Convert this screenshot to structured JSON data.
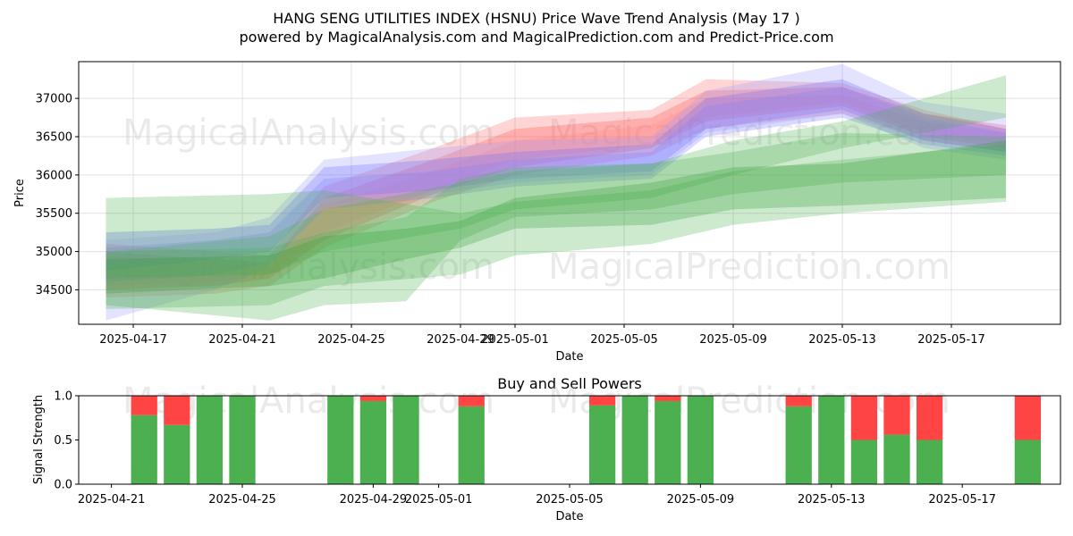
{
  "chart_data": [
    {
      "type": "area",
      "title": "HANG SENG UTILITIES INDEX (HSNU) Price Wave Trend Analysis (May 17 )",
      "subtitle": "powered by MagicalAnalysis.com and MagicalPrediction.com and Predict-Price.com",
      "xlabel": "Date",
      "ylabel": "Price",
      "xlim": [
        "2025-04-15",
        "2025-05-21"
      ],
      "ylim": [
        34050,
        37480
      ],
      "xticks": [
        "2025-04-17",
        "2025-04-21",
        "2025-04-25",
        "2025-04-29",
        "2025-05-01",
        "2025-05-05",
        "2025-05-09",
        "2025-05-13",
        "2025-05-17"
      ],
      "yticks": [
        34500,
        35000,
        35500,
        36000,
        36500,
        37000
      ],
      "grid": true,
      "watermarks": [
        "MagicalAnalysis.com",
        "MagicalPrediction.com",
        "MagicalAnalysis.com",
        "MagicalPrediction.com"
      ],
      "bands": [
        {
          "color": "#ff4444",
          "x": [
            "2025-04-16",
            "2025-04-20",
            "2025-04-22",
            "2025-04-24",
            "2025-04-28",
            "2025-05-01",
            "2025-05-06",
            "2025-05-08",
            "2025-05-13",
            "2025-05-16",
            "2025-05-19"
          ],
          "upper": [
            35000,
            34900,
            34850,
            35700,
            36200,
            36600,
            36750,
            37100,
            37150,
            36800,
            36650
          ],
          "lower": [
            34500,
            34550,
            34650,
            35150,
            35750,
            36100,
            36350,
            36700,
            36900,
            36500,
            36350
          ]
        },
        {
          "color": "#ff6666",
          "x": [
            "2025-04-16",
            "2025-04-20",
            "2025-04-22",
            "2025-04-24",
            "2025-04-28",
            "2025-05-01",
            "2025-05-06",
            "2025-05-08",
            "2025-05-13",
            "2025-05-16",
            "2025-05-19"
          ],
          "upper": [
            35100,
            35000,
            34950,
            35850,
            36350,
            36750,
            36850,
            37250,
            37200,
            36850,
            36600
          ],
          "lower": [
            34400,
            34450,
            34550,
            35050,
            35650,
            36000,
            36250,
            36600,
            36800,
            36450,
            36300
          ]
        },
        {
          "color": "#ff8888",
          "x": [
            "2025-04-16",
            "2025-04-20",
            "2025-04-22",
            "2025-04-24",
            "2025-04-28",
            "2025-05-01",
            "2025-05-06",
            "2025-05-08",
            "2025-05-13",
            "2025-05-16",
            "2025-05-19"
          ],
          "upper": [
            34950,
            34850,
            34800,
            35600,
            36050,
            36450,
            36650,
            37000,
            37050,
            36700,
            36550
          ],
          "lower": [
            34550,
            34600,
            34700,
            35250,
            35800,
            36200,
            36400,
            36750,
            36950,
            36550,
            36400
          ]
        },
        {
          "color": "#5555ff",
          "x": [
            "2025-04-16",
            "2025-04-20",
            "2025-04-22",
            "2025-04-24",
            "2025-04-28",
            "2025-05-01",
            "2025-05-06",
            "2025-05-08",
            "2025-05-13",
            "2025-05-16",
            "2025-05-19"
          ],
          "upper": [
            35250,
            35300,
            35350,
            36100,
            36200,
            36300,
            36400,
            37000,
            37250,
            36800,
            36600
          ],
          "lower": [
            34750,
            34900,
            35000,
            35700,
            35800,
            35950,
            36050,
            36600,
            36850,
            36450,
            36300
          ]
        },
        {
          "color": "#7777ff",
          "x": [
            "2025-04-16",
            "2025-04-20",
            "2025-04-22",
            "2025-04-24",
            "2025-04-28",
            "2025-05-01",
            "2025-05-06",
            "2025-05-08",
            "2025-05-13",
            "2025-05-16",
            "2025-05-19"
          ],
          "upper": [
            35050,
            35150,
            35250,
            35950,
            36050,
            36200,
            36300,
            36900,
            37150,
            36750,
            36550
          ],
          "lower": [
            34600,
            34700,
            34850,
            35550,
            35700,
            35850,
            35950,
            36500,
            36750,
            36400,
            36250
          ]
        },
        {
          "color": "#9999ff",
          "x": [
            "2025-04-16",
            "2025-04-20",
            "2025-04-22",
            "2025-04-24",
            "2025-04-28",
            "2025-05-01",
            "2025-05-06",
            "2025-05-08",
            "2025-05-13",
            "2025-05-16",
            "2025-05-19"
          ],
          "upper": [
            35150,
            35250,
            35450,
            36200,
            36350,
            36450,
            36500,
            37100,
            37450,
            36950,
            36800
          ],
          "lower": [
            34100,
            34500,
            34800,
            35600,
            35750,
            35900,
            36000,
            36550,
            36800,
            36350,
            36200
          ]
        },
        {
          "color": "#4caf50",
          "x": [
            "2025-04-16",
            "2025-04-22",
            "2025-04-24",
            "2025-04-29",
            "2025-05-01",
            "2025-05-06",
            "2025-05-09",
            "2025-05-13",
            "2025-05-19"
          ],
          "upper": [
            35000,
            35200,
            35550,
            35900,
            36050,
            36150,
            36450,
            36700,
            37300
          ],
          "lower": [
            34650,
            34700,
            35000,
            35300,
            35550,
            35700,
            36000,
            36350,
            36750
          ]
        },
        {
          "color": "#4caf50",
          "x": [
            "2025-04-16",
            "2025-04-22",
            "2025-04-24",
            "2025-04-29",
            "2025-05-01",
            "2025-05-06",
            "2025-05-09",
            "2025-05-13",
            "2025-05-19"
          ],
          "upper": [
            35700,
            35750,
            35800,
            35500,
            35650,
            35800,
            36050,
            36200,
            36400
          ],
          "lower": [
            34250,
            34300,
            34550,
            34700,
            34950,
            35100,
            35350,
            35500,
            35650
          ]
        },
        {
          "color": "#4caf50",
          "x": [
            "2025-04-16",
            "2025-04-22",
            "2025-04-24",
            "2025-04-27",
            "2025-04-29",
            "2025-05-01",
            "2025-05-06",
            "2025-05-09",
            "2025-05-13",
            "2025-05-19"
          ],
          "upper": [
            35000,
            35050,
            35250,
            35450,
            35950,
            36100,
            36150,
            36300,
            36550,
            36500
          ],
          "lower": [
            34300,
            34100,
            34300,
            34350,
            35150,
            35450,
            35550,
            35750,
            35900,
            36000
          ]
        },
        {
          "color": "#2e9d36",
          "x": [
            "2025-04-16",
            "2025-04-22",
            "2025-04-24",
            "2025-04-27",
            "2025-04-29",
            "2025-05-01",
            "2025-05-06",
            "2025-05-09",
            "2025-05-13",
            "2025-05-19"
          ],
          "upper": [
            34900,
            34950,
            35200,
            35300,
            35400,
            35700,
            35900,
            36100,
            36150,
            36450
          ],
          "lower": [
            34450,
            34550,
            34650,
            34900,
            35050,
            35300,
            35350,
            35550,
            35600,
            35700
          ]
        }
      ]
    },
    {
      "type": "bar",
      "title": "Buy and Sell Powers",
      "xlabel": "Date",
      "ylabel": "Signal Strength",
      "xlim": [
        "2025-04-20",
        "2025-05-20"
      ],
      "ylim": [
        0,
        1
      ],
      "xticks": [
        "2025-04-21",
        "2025-04-25",
        "2025-04-29",
        "2025-05-01",
        "2025-05-05",
        "2025-05-09",
        "2025-05-13",
        "2025-05-17"
      ],
      "yticks": [
        0.0,
        0.5,
        1.0
      ],
      "buy_color": "#4caf50",
      "sell_color": "#ff4444",
      "bars": [
        {
          "date": "2025-04-22",
          "buy": 0.78
        },
        {
          "date": "2025-04-23",
          "buy": 0.67
        },
        {
          "date": "2025-04-24",
          "buy": 1.0
        },
        {
          "date": "2025-04-25",
          "buy": 1.0
        },
        {
          "date": "2025-04-28",
          "buy": 1.0
        },
        {
          "date": "2025-04-29",
          "buy": 0.94
        },
        {
          "date": "2025-04-30",
          "buy": 1.0
        },
        {
          "date": "2025-05-02",
          "buy": 0.88
        },
        {
          "date": "2025-05-06",
          "buy": 0.89
        },
        {
          "date": "2025-05-07",
          "buy": 1.0
        },
        {
          "date": "2025-05-08",
          "buy": 0.94
        },
        {
          "date": "2025-05-09",
          "buy": 1.0
        },
        {
          "date": "2025-05-12",
          "buy": 0.88
        },
        {
          "date": "2025-05-13",
          "buy": 1.0
        },
        {
          "date": "2025-05-14",
          "buy": 0.5
        },
        {
          "date": "2025-05-15",
          "buy": 0.56
        },
        {
          "date": "2025-05-16",
          "buy": 0.5
        },
        {
          "date": "2025-05-19",
          "buy": 0.5
        }
      ]
    }
  ]
}
